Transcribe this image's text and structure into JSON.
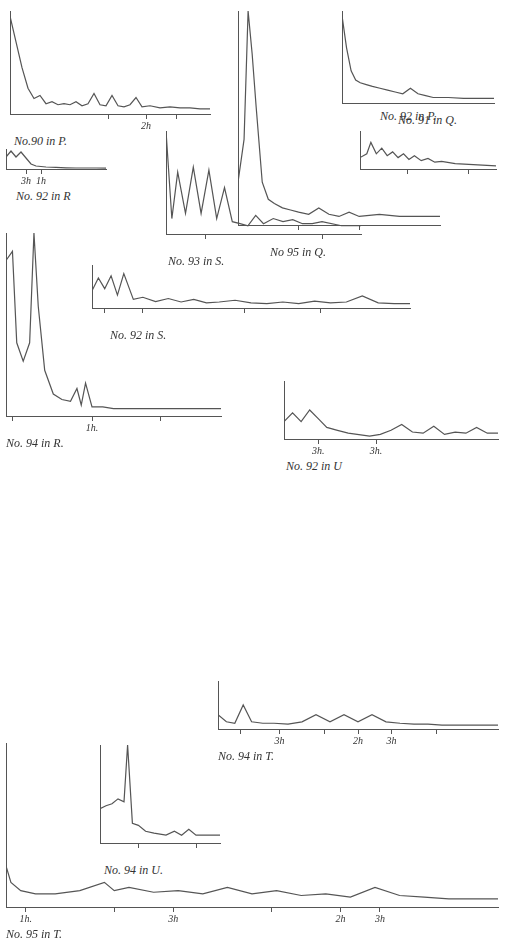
{
  "chart_data": [
    {
      "type": "line",
      "title": "No.90 in P.",
      "color": "#555555",
      "grid": false,
      "tick_labels": "x",
      "x": [
        0,
        3,
        6,
        9,
        12,
        15,
        18,
        21,
        24,
        27,
        30,
        33,
        36,
        39,
        42,
        45,
        48,
        51,
        54,
        57,
        60,
        63,
        66,
        70,
        75,
        80,
        85,
        90,
        95,
        100
      ],
      "values": [
        95,
        70,
        45,
        25,
        15,
        18,
        10,
        12,
        9,
        10,
        9,
        12,
        8,
        10,
        20,
        9,
        8,
        18,
        8,
        7,
        9,
        16,
        7,
        8,
        6,
        7,
        6,
        6,
        5,
        5
      ],
      "xlim": [
        0,
        100
      ],
      "ylim": [
        0,
        100
      ],
      "xticks": [
        {
          "value": 49,
          "label": null
        },
        {
          "value": 68,
          "label": "2h"
        },
        {
          "value": 83,
          "label": null
        }
      ]
    },
    {
      "type": "line",
      "title": "No. 92 in P.",
      "color": "#555555",
      "grid": false,
      "tick_labels": "x",
      "x": [
        0,
        3,
        6,
        9,
        12,
        16,
        20,
        25,
        30,
        35,
        40,
        45,
        50,
        55,
        60,
        70,
        80,
        90,
        100
      ],
      "values": [
        95,
        60,
        35,
        25,
        22,
        20,
        18,
        16,
        14,
        12,
        10,
        16,
        10,
        8,
        6,
        6,
        5,
        5,
        5
      ],
      "xlim": [
        0,
        100
      ],
      "ylim": [
        0,
        100
      ],
      "xticks": []
    },
    {
      "type": "line",
      "title": "No. 91 in Q.",
      "color": "#555555",
      "grid": false,
      "tick_labels": "x",
      "x": [
        0,
        5,
        8,
        12,
        16,
        20,
        24,
        28,
        32,
        36,
        40,
        45,
        50,
        55,
        60,
        70,
        80,
        90,
        100
      ],
      "values": [
        30,
        40,
        70,
        40,
        55,
        35,
        45,
        30,
        40,
        25,
        35,
        22,
        28,
        18,
        20,
        14,
        12,
        10,
        8
      ],
      "xlim": [
        0,
        100
      ],
      "ylim": [
        0,
        100
      ],
      "xticks": [
        {
          "value": 35,
          "label": null
        },
        {
          "value": 80,
          "label": null
        }
      ]
    },
    {
      "type": "line",
      "title": "No 95 in Q.",
      "color": "#555555",
      "grid": false,
      "tick_labels": "x",
      "x": [
        0,
        3,
        5,
        7,
        9,
        12,
        15,
        18,
        22,
        26,
        30,
        35,
        40,
        45,
        50,
        55,
        60,
        70,
        80,
        90,
        100
      ],
      "values": [
        20,
        40,
        100,
        80,
        55,
        20,
        12,
        10,
        8,
        7,
        6,
        5,
        8,
        5,
        4,
        6,
        4,
        5,
        4,
        4,
        4
      ],
      "xlim": [
        0,
        100
      ],
      "ylim": [
        0,
        100
      ],
      "xticks": [
        {
          "value": 30,
          "label": null
        },
        {
          "value": 60,
          "label": null
        }
      ]
    },
    {
      "type": "line",
      "title": "No. 92 in R",
      "color": "#555555",
      "grid": false,
      "tick_labels": "x",
      "x": [
        0,
        5,
        10,
        15,
        20,
        25,
        30,
        40,
        50,
        60,
        70,
        80,
        90,
        100
      ],
      "values": [
        60,
        90,
        60,
        85,
        55,
        25,
        15,
        10,
        8,
        6,
        5,
        5,
        5,
        4
      ],
      "xlim": [
        0,
        100
      ],
      "ylim": [
        0,
        100
      ],
      "xticks": [
        {
          "value": 20,
          "label": "3h"
        },
        {
          "value": 35,
          "label": "1h"
        }
      ]
    },
    {
      "type": "line",
      "title": "No. 93 in S.",
      "color": "#555555",
      "grid": false,
      "tick_labels": "x",
      "x": [
        0,
        3,
        6,
        10,
        14,
        18,
        22,
        26,
        30,
        34,
        38,
        42,
        46,
        50,
        55,
        60,
        65,
        70,
        75,
        80,
        90,
        100
      ],
      "values": [
        100,
        15,
        60,
        20,
        65,
        20,
        62,
        15,
        45,
        12,
        10,
        8,
        18,
        10,
        15,
        12,
        14,
        10,
        10,
        12,
        8,
        8
      ],
      "xlim": [
        0,
        100
      ],
      "ylim": [
        0,
        100
      ],
      "xticks": [
        {
          "value": 20,
          "label": null
        },
        {
          "value": 80,
          "label": null
        }
      ]
    },
    {
      "type": "line",
      "title": "No. 94 in R.",
      "color": "#555555",
      "grid": false,
      "tick_labels": "x",
      "x": [
        0,
        3,
        5,
        8,
        11,
        13,
        15,
        18,
        22,
        26,
        30,
        33,
        35,
        37,
        40,
        45,
        50,
        60,
        70,
        80,
        90,
        100
      ],
      "values": [
        85,
        90,
        40,
        30,
        40,
        100,
        60,
        25,
        12,
        9,
        8,
        15,
        6,
        18,
        5,
        5,
        4,
        4,
        4,
        4,
        4,
        4
      ],
      "xlim": [
        0,
        100
      ],
      "ylim": [
        0,
        100
      ],
      "xticks": [
        {
          "value": 3,
          "label": null
        },
        {
          "value": 40,
          "label": "1h."
        },
        {
          "value": 72,
          "label": null
        }
      ]
    },
    {
      "type": "line",
      "title": "No. 92 in S.",
      "color": "#555555",
      "grid": false,
      "tick_labels": "x",
      "x": [
        0,
        2,
        4,
        6,
        8,
        10,
        13,
        16,
        20,
        24,
        28,
        32,
        36,
        40,
        45,
        50,
        55,
        60,
        65,
        70,
        75,
        80,
        85,
        90,
        95,
        100
      ],
      "values": [
        40,
        70,
        45,
        75,
        30,
        80,
        20,
        25,
        15,
        22,
        14,
        20,
        12,
        14,
        18,
        12,
        10,
        14,
        10,
        16,
        12,
        14,
        28,
        12,
        10,
        10
      ],
      "xlim": [
        0,
        100
      ],
      "ylim": [
        0,
        100
      ],
      "xticks": [
        {
          "value": 4,
          "label": null
        },
        {
          "value": 16,
          "label": null
        },
        {
          "value": 48,
          "label": null
        },
        {
          "value": 72,
          "label": null
        }
      ]
    },
    {
      "type": "line",
      "title": "No. 92 in U",
      "color": "#555555",
      "grid": false,
      "tick_labels": "x",
      "x": [
        0,
        4,
        8,
        12,
        16,
        20,
        25,
        30,
        40,
        45,
        50,
        55,
        60,
        65,
        70,
        75,
        80,
        85,
        90,
        95,
        100
      ],
      "values": [
        30,
        45,
        30,
        50,
        35,
        20,
        15,
        10,
        5,
        8,
        15,
        25,
        12,
        10,
        22,
        8,
        12,
        10,
        20,
        10,
        10
      ],
      "xlim": [
        0,
        100
      ],
      "ylim": [
        0,
        100
      ],
      "xticks": [
        {
          "value": 16,
          "label": "3h."
        },
        {
          "value": 43,
          "label": "3h."
        }
      ]
    },
    {
      "type": "line",
      "title": "No. 94 in U.",
      "color": "#555555",
      "grid": false,
      "tick_labels": "x",
      "x": [
        0,
        5,
        10,
        15,
        20,
        23,
        27,
        32,
        38,
        45,
        55,
        62,
        68,
        74,
        80,
        90,
        100
      ],
      "values": [
        35,
        38,
        40,
        45,
        42,
        100,
        20,
        18,
        12,
        10,
        8,
        12,
        8,
        14,
        8,
        8,
        8
      ],
      "xlim": [
        0,
        100
      ],
      "ylim": [
        0,
        100
      ],
      "xticks": [
        {
          "value": 32,
          "label": null
        },
        {
          "value": 80,
          "label": null
        }
      ]
    },
    {
      "type": "line",
      "title": "No. 94 in T.",
      "color": "#555555",
      "grid": false,
      "tick_labels": "x",
      "x": [
        0,
        3,
        6,
        9,
        12,
        16,
        20,
        25,
        30,
        35,
        40,
        45,
        50,
        55,
        60,
        65,
        70,
        75,
        80,
        90,
        100
      ],
      "values": [
        30,
        15,
        12,
        50,
        15,
        12,
        12,
        10,
        15,
        30,
        15,
        30,
        15,
        30,
        15,
        12,
        10,
        10,
        8,
        8,
        8
      ],
      "xlim": [
        0,
        100
      ],
      "ylim": [
        0,
        100
      ],
      "xticks": [
        {
          "value": 8,
          "label": null
        },
        {
          "value": 22,
          "label": "3h"
        },
        {
          "value": 38,
          "label": null
        },
        {
          "value": 50,
          "label": "2h"
        },
        {
          "value": 62,
          "label": "3h"
        },
        {
          "value": 78,
          "label": null
        }
      ]
    },
    {
      "type": "line",
      "title": "No. 95 in T.",
      "color": "#555555",
      "grid": false,
      "tick_labels": "x",
      "x": [
        0,
        1,
        3,
        6,
        10,
        15,
        20,
        22,
        25,
        30,
        35,
        40,
        45,
        50,
        55,
        60,
        65,
        70,
        75,
        80,
        85,
        90,
        95,
        100
      ],
      "values": [
        25,
        15,
        10,
        8,
        8,
        10,
        15,
        10,
        12,
        9,
        10,
        8,
        12,
        8,
        10,
        7,
        8,
        6,
        12,
        7,
        6,
        5,
        5,
        5
      ],
      "xlim": [
        0,
        100
      ],
      "ylim": [
        0,
        100
      ],
      "xticks": [
        {
          "value": 4,
          "label": "1h."
        },
        {
          "value": 22,
          "label": null
        },
        {
          "value": 34,
          "label": "3h"
        },
        {
          "value": 54,
          "label": null
        },
        {
          "value": 68,
          "label": "2h"
        },
        {
          "value": 76,
          "label": "3h"
        }
      ]
    }
  ]
}
